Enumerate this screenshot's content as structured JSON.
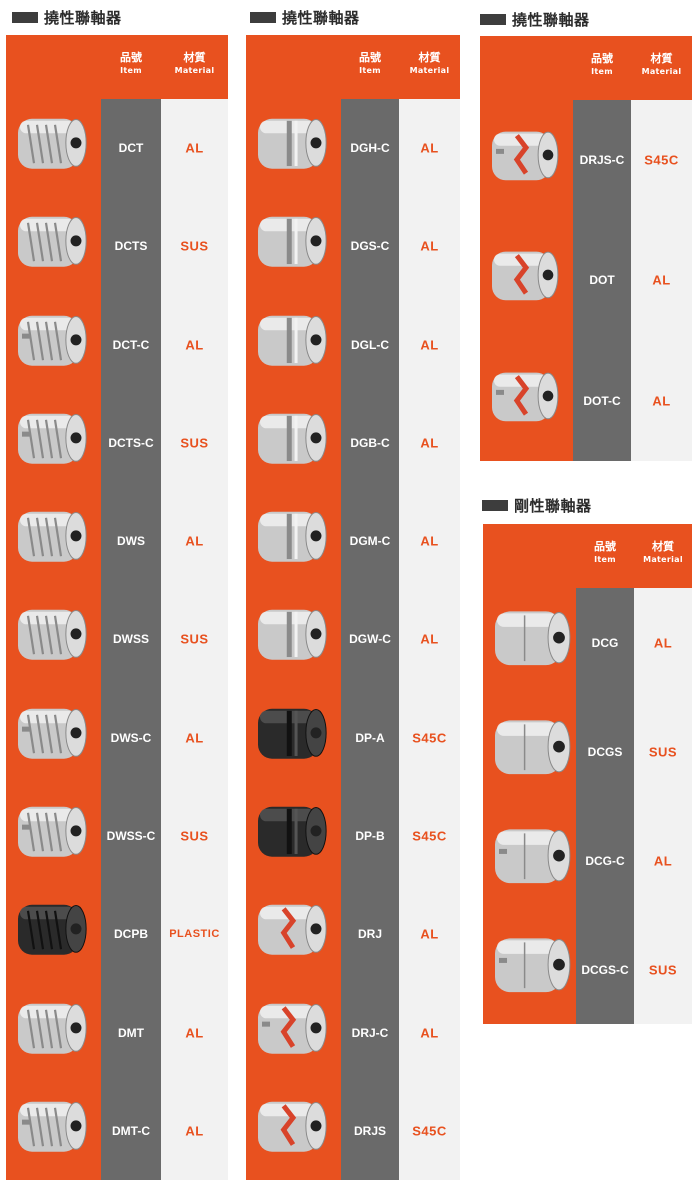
{
  "headings": {
    "col1": "撓性聯軸器",
    "col2": "撓性聯軸器",
    "col3": "撓性聯軸器",
    "col4": "剛性聯軸器"
  },
  "header": {
    "item_zh": "品號",
    "item_en": "Item",
    "material_zh": "材質",
    "material_en": "Material"
  },
  "colors": {
    "accent": "#e8511f",
    "item_column": "#6a6a6a",
    "material_column": "#f2f2f2"
  },
  "panels": [
    {
      "id": "col1",
      "rows": [
        {
          "item": "DCT",
          "material": "AL",
          "icon": "slit-coupling-aluminum"
        },
        {
          "item": "DCTS",
          "material": "SUS",
          "icon": "slit-coupling-steel"
        },
        {
          "item": "DCT-C",
          "material": "AL",
          "icon": "slit-coupling-clamp"
        },
        {
          "item": "DCTS-C",
          "material": "SUS",
          "icon": "slit-coupling-clamp-steel"
        },
        {
          "item": "DWS",
          "material": "AL",
          "icon": "spiral-coupling"
        },
        {
          "item": "DWSS",
          "material": "SUS",
          "icon": "spiral-coupling-steel"
        },
        {
          "item": "DWS-C",
          "material": "AL",
          "icon": "spiral-coupling-clamp"
        },
        {
          "item": "DWSS-C",
          "material": "SUS",
          "icon": "spiral-coupling-clamp-steel"
        },
        {
          "item": "DCPB",
          "material": "PLASTIC",
          "icon": "plastic-coupling"
        },
        {
          "item": "DMT",
          "material": "AL",
          "icon": "multi-slit-coupling"
        },
        {
          "item": "DMT-C",
          "material": "AL",
          "icon": "multi-slit-coupling-clamp"
        }
      ]
    },
    {
      "id": "col2",
      "rows": [
        {
          "item": "DGH-C",
          "material": "AL",
          "icon": "disc-coupling"
        },
        {
          "item": "DGS-C",
          "material": "AL",
          "icon": "disc-coupling"
        },
        {
          "item": "DGL-C",
          "material": "AL",
          "icon": "disc-coupling-long"
        },
        {
          "item": "DGB-C",
          "material": "AL",
          "icon": "disc-coupling"
        },
        {
          "item": "DGM-C",
          "material": "AL",
          "icon": "disc-coupling"
        },
        {
          "item": "DGW-C",
          "material": "AL",
          "icon": "disc-coupling"
        },
        {
          "item": "DP-A",
          "material": "S45C",
          "icon": "steel-disc-coupling"
        },
        {
          "item": "DP-B",
          "material": "S45C",
          "icon": "steel-disc-coupling"
        },
        {
          "item": "DRJ",
          "material": "AL",
          "icon": "jaw-coupling"
        },
        {
          "item": "DRJ-C",
          "material": "AL",
          "icon": "jaw-coupling-clamp"
        },
        {
          "item": "DRJS",
          "material": "S45C",
          "icon": "jaw-coupling-steel"
        }
      ]
    },
    {
      "id": "col3",
      "rows": [
        {
          "item": "DRJS-C",
          "material": "S45C",
          "icon": "jaw-coupling-clamp"
        },
        {
          "item": "DOT",
          "material": "AL",
          "icon": "oldham-coupling"
        },
        {
          "item": "DOT-C",
          "material": "AL",
          "icon": "oldham-coupling-clamp"
        }
      ]
    },
    {
      "id": "col4",
      "rows": [
        {
          "item": "DCG",
          "material": "AL",
          "icon": "rigid-coupling"
        },
        {
          "item": "DCGS",
          "material": "SUS",
          "icon": "rigid-coupling-steel"
        },
        {
          "item": "DCG-C",
          "material": "AL",
          "icon": "rigid-coupling-clamp"
        },
        {
          "item": "DCGS-C",
          "material": "SUS",
          "icon": "rigid-coupling-clamp-steel"
        }
      ]
    }
  ]
}
